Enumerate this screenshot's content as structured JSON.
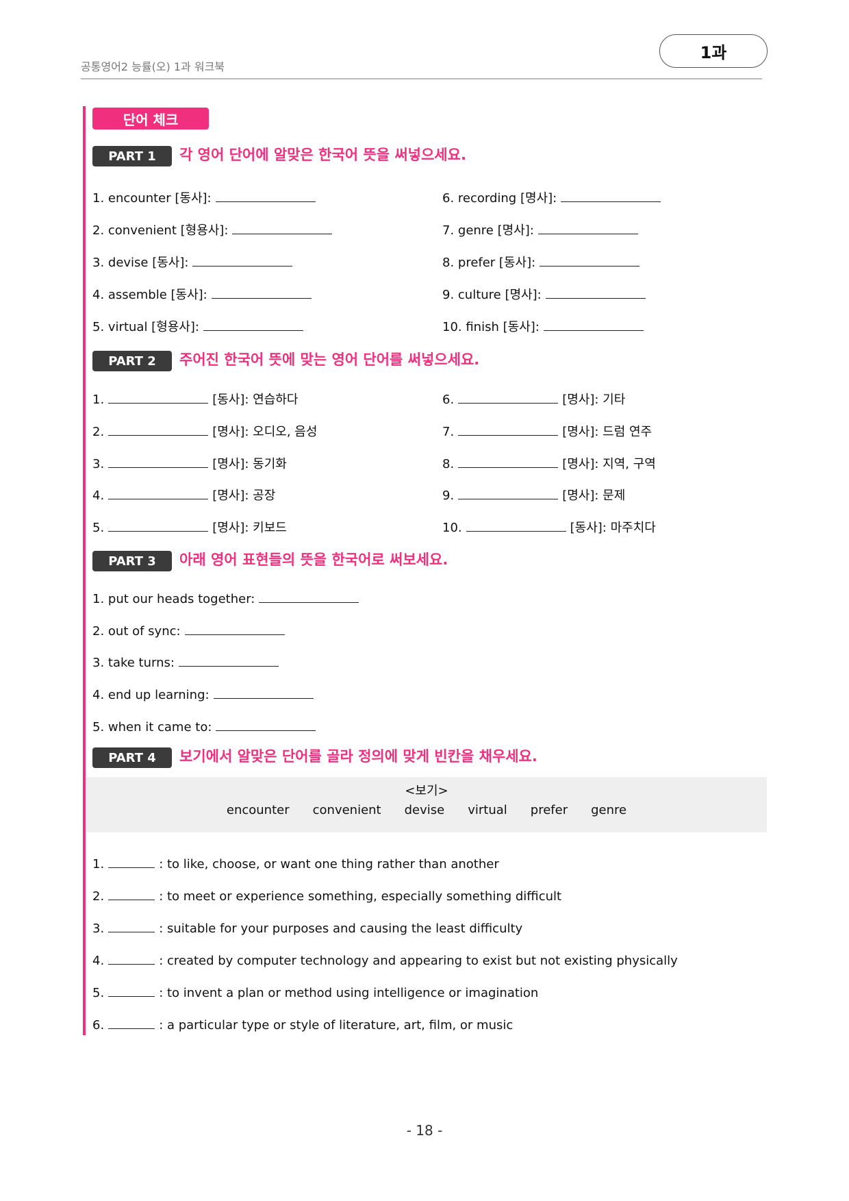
{
  "header": {
    "title": "공통영어2 능률(오) 1과 워크북",
    "lesson_badge": "1과"
  },
  "section_tag": "단어 체크",
  "parts": [
    {
      "tag": "PART 1",
      "instruction": "각 영어 단어에 알맞은 한국어 뜻을 써넣으세요.",
      "left": [
        "1. encounter [동사]:",
        "2. convenient [형용사]:",
        "3. devise [동사]:",
        "4. assemble [동사]:",
        "5. virtual [형용사]:"
      ],
      "right": [
        "6. recording [명사]:",
        "7. genre [명사]:",
        "8. prefer [동사]:",
        "9. culture [명사]:",
        "10. finish [동사]:"
      ]
    },
    {
      "tag": "PART 2",
      "instruction": "주어진 한국어 뜻에 맞는 영어 단어를 써넣으세요.",
      "left": [
        {
          "num": "1.",
          "meaning": "[동사]: 연습하다"
        },
        {
          "num": "2.",
          "meaning": "[명사]: 오디오, 음성"
        },
        {
          "num": "3.",
          "meaning": "[명사]: 동기화"
        },
        {
          "num": "4.",
          "meaning": "[명사]: 공장"
        },
        {
          "num": "5.",
          "meaning": "[명사]: 키보드"
        }
      ],
      "right": [
        {
          "num": "6.",
          "meaning": "[명사]: 기타"
        },
        {
          "num": "7.",
          "meaning": "[명사]: 드럼 연주"
        },
        {
          "num": "8.",
          "meaning": "[명사]: 지역, 구역"
        },
        {
          "num": "9.",
          "meaning": "[명사]: 문제"
        },
        {
          "num": "10.",
          "meaning": "[동사]: 마주치다"
        }
      ]
    },
    {
      "tag": "PART 3",
      "instruction": "아래 영어 표현들의 뜻을 한국어로 써보세요.",
      "items": [
        "1. put our heads together:",
        "2. out of sync:",
        "3. take turns:",
        "4. end up learning:",
        "5. when it came to:"
      ]
    },
    {
      "tag": "PART 4",
      "instruction": "보기에서 알맞은 단어를 골라 정의에 맞게 빈칸을 채우세요.",
      "bogi_title": "<보기>",
      "bogi_words": [
        "encounter",
        "convenient",
        "devise",
        "virtual",
        "prefer",
        "genre"
      ],
      "items": [
        {
          "num": "1.",
          "def": ": to like, choose, or want one thing rather than another"
        },
        {
          "num": "2.",
          "def": ": to meet or experience something, especially something difficult"
        },
        {
          "num": "3.",
          "def": ": suitable for your purposes and causing the least difficulty"
        },
        {
          "num": "4.",
          "def": ": created by computer technology and appearing to exist but not existing physically"
        },
        {
          "num": "5.",
          "def": ": to invent a plan or method using intelligence or imagination"
        },
        {
          "num": "6.",
          "def": ": a particular type or style of literature, art, film, or music"
        }
      ]
    }
  ],
  "page_number": "- 18 -",
  "colors": {
    "accent": "#f0307f",
    "part_tag": "#3b3b3b",
    "bogi_bg": "#efefef"
  }
}
